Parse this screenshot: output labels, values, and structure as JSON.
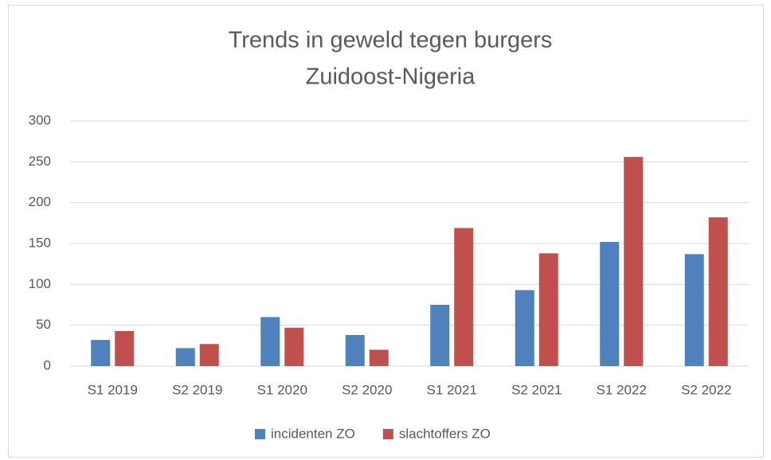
{
  "chart_data": {
    "type": "bar",
    "title": "Trends in geweld tegen burgers",
    "subtitle": "Zuidoost-Nigeria",
    "categories": [
      "S1 2019",
      "S2 2019",
      "S1 2020",
      "S2 2020",
      "S1 2021",
      "S2 2021",
      "S1 2022",
      "S2 2022"
    ],
    "series": [
      {
        "name": "incidenten ZO",
        "color": "#4f81bd",
        "values": [
          32,
          22,
          60,
          38,
          75,
          93,
          152,
          137
        ]
      },
      {
        "name": "slachtoffers ZO",
        "color": "#c0504d",
        "values": [
          43,
          27,
          47,
          20,
          169,
          138,
          256,
          182
        ]
      }
    ],
    "ylim": [
      0,
      300
    ],
    "yticks": [
      0,
      50,
      100,
      150,
      200,
      250,
      300
    ],
    "grid": true,
    "legend": "bottom"
  }
}
